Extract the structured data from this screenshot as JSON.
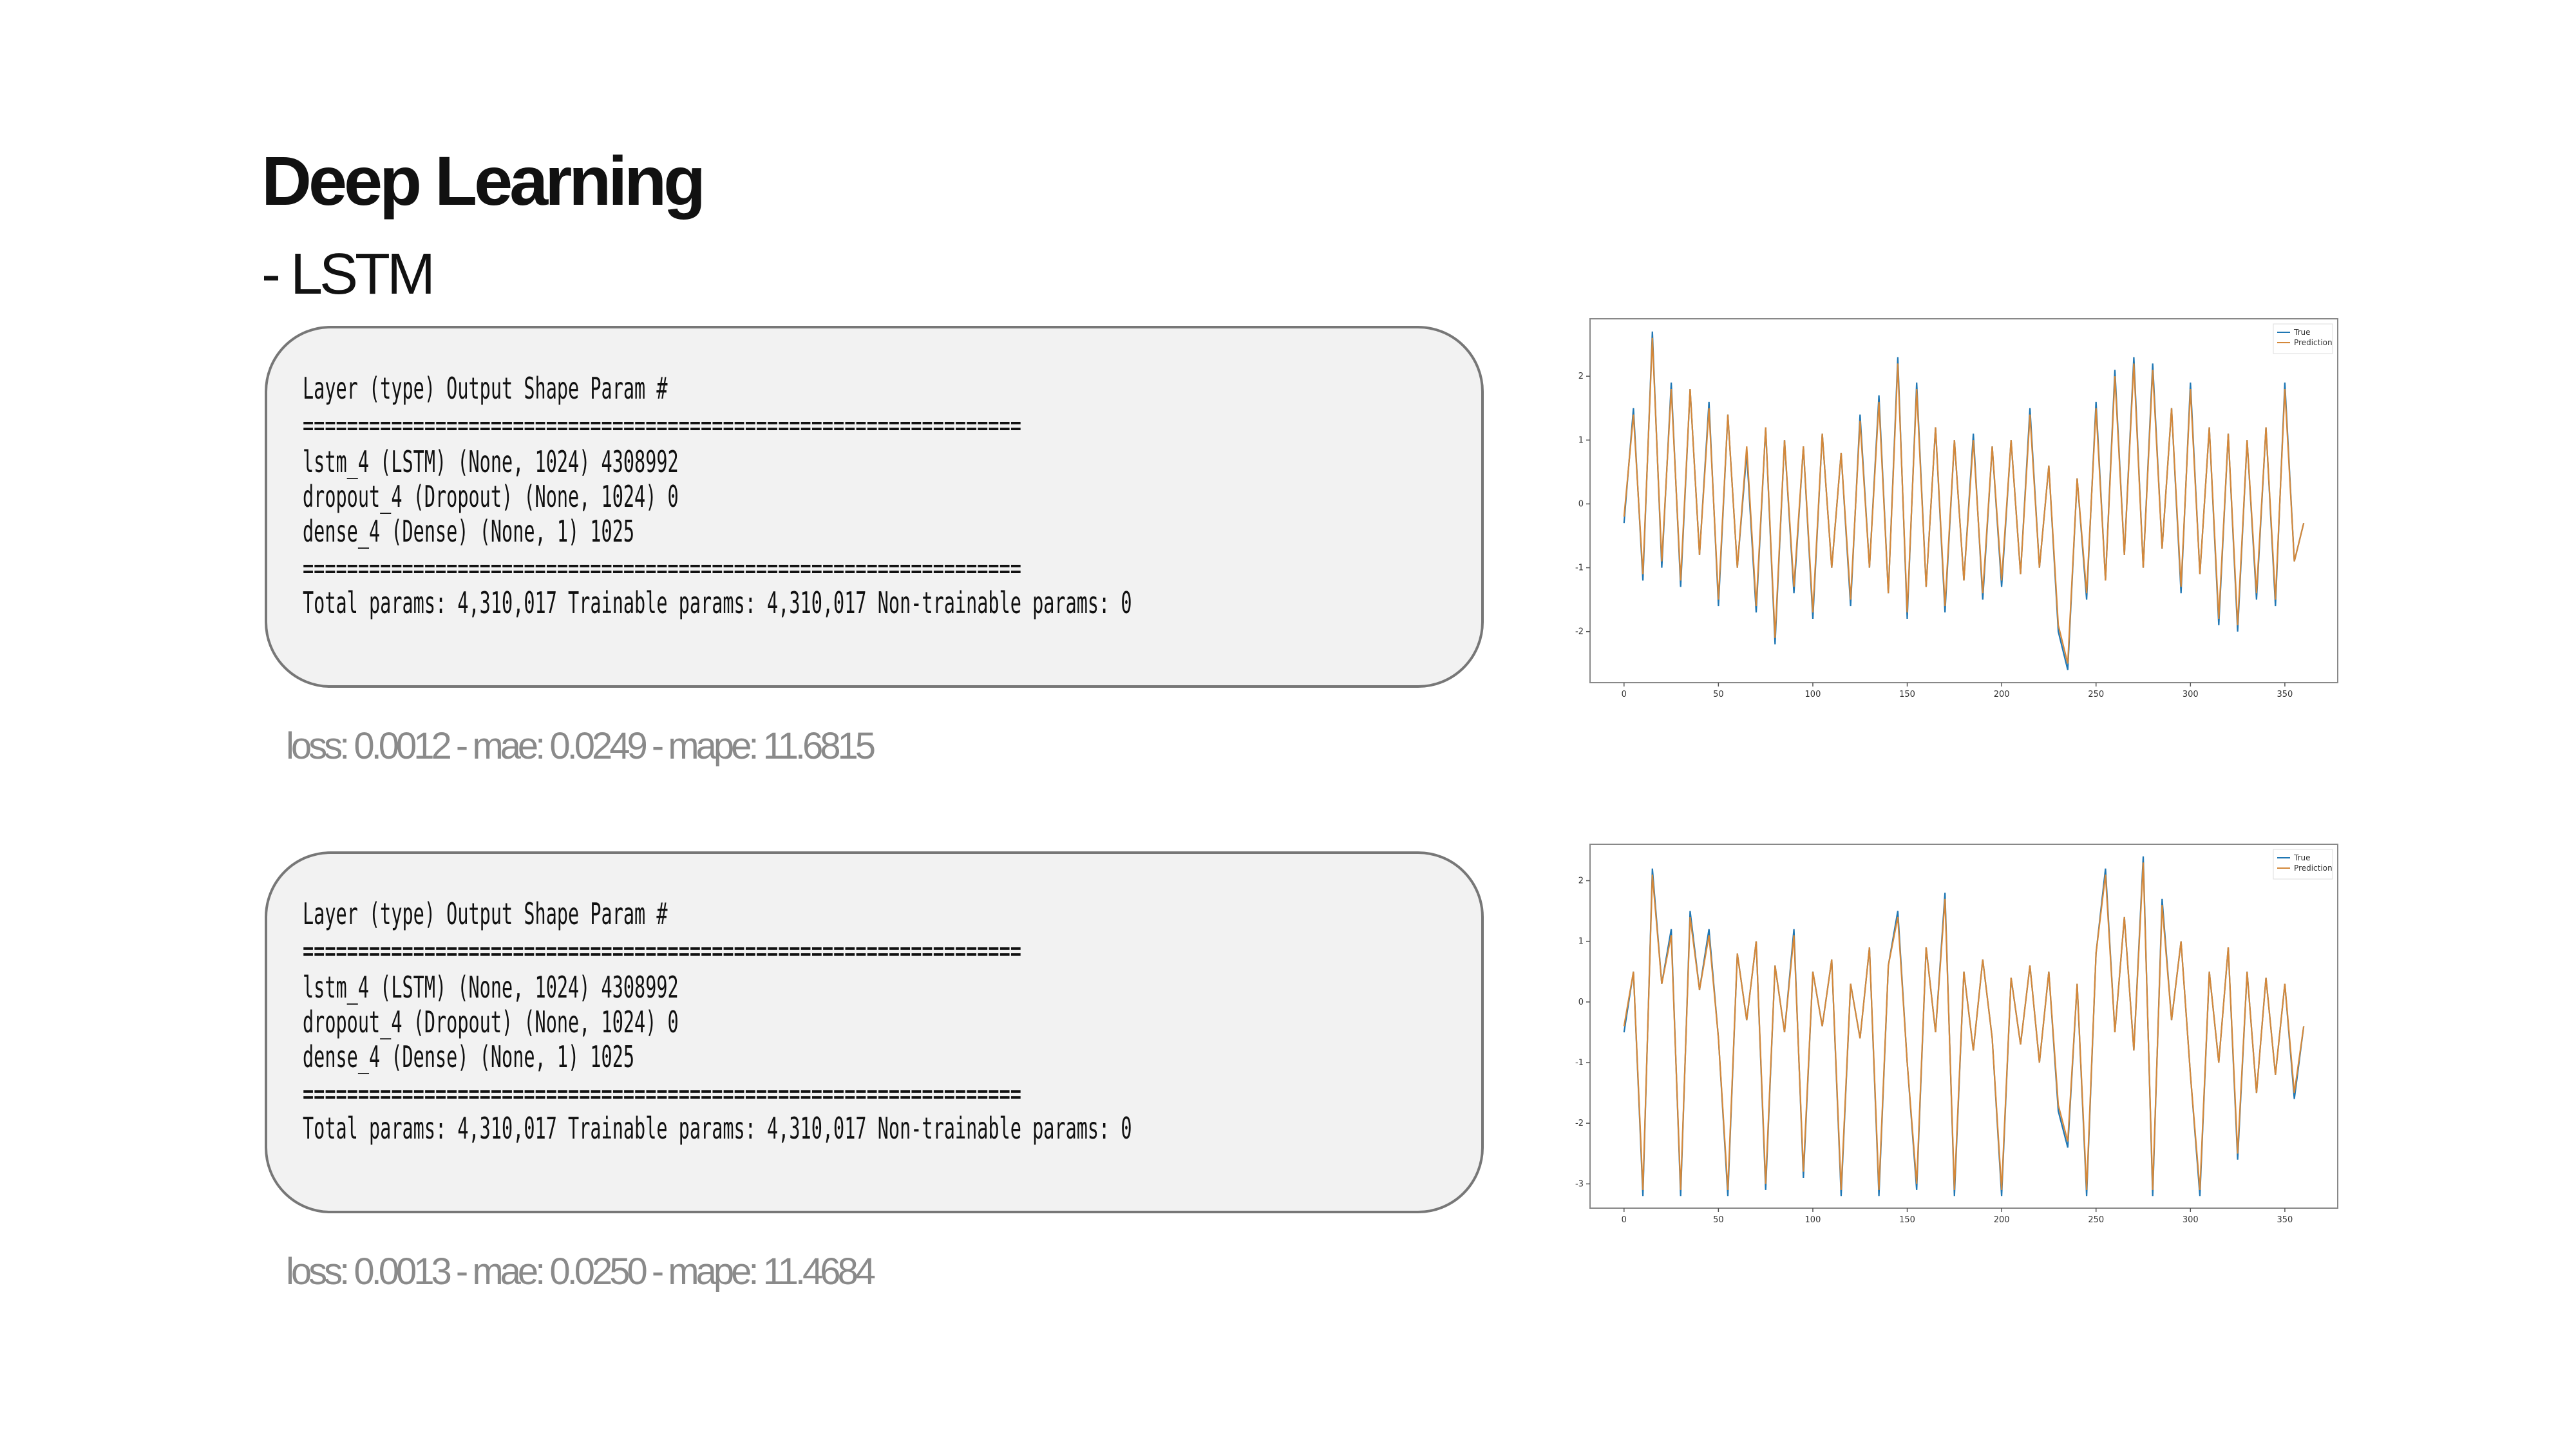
{
  "title": "Deep Learning",
  "subtitle": "- LSTM",
  "panels": [
    {
      "summary": [
        "Layer (type) Output Shape Param #",
        "=================================================================",
        "lstm_4 (LSTM) (None, 1024) 4308992",
        "dropout_4 (Dropout) (None, 1024) 0",
        "dense_4 (Dense) (None, 1) 1025",
        "=================================================================",
        "Total params: 4,310,017 Trainable params: 4,310,017 Non-trainable params: 0"
      ],
      "metrics": "loss: 0.0012 - mae: 0.0249 - mape: 11.6815"
    },
    {
      "summary": [
        "Layer (type) Output Shape Param #",
        "=================================================================",
        "lstm_4 (LSTM) (None, 1024) 4308992",
        "dropout_4 (Dropout) (None, 1024) 0",
        "dense_4 (Dense) (None, 1) 1025",
        "=================================================================",
        "Total params: 4,310,017 Trainable params: 4,310,017 Non-trainable params: 0"
      ],
      "metrics": "loss: 0.0013 - mae: 0.0250 - mape: 11.4684"
    }
  ],
  "chart_data": [
    {
      "type": "line",
      "legend": "upper right",
      "x": [
        0,
        5,
        10,
        15,
        20,
        25,
        30,
        35,
        40,
        45,
        50,
        55,
        60,
        65,
        70,
        75,
        80,
        85,
        90,
        95,
        100,
        105,
        110,
        115,
        120,
        125,
        130,
        135,
        140,
        145,
        150,
        155,
        160,
        165,
        170,
        175,
        180,
        185,
        190,
        195,
        200,
        205,
        210,
        215,
        220,
        225,
        230,
        235,
        240,
        245,
        250,
        255,
        260,
        265,
        270,
        275,
        280,
        285,
        290,
        295,
        300,
        305,
        310,
        315,
        320,
        325,
        330,
        335,
        340,
        345,
        350,
        355,
        360
      ],
      "xlim": [
        -18,
        378
      ],
      "xticks": [
        0,
        50,
        100,
        150,
        200,
        250,
        300,
        350
      ],
      "ylim": [
        -2.8,
        2.9
      ],
      "yticks": [
        -2,
        -1,
        0,
        1,
        2
      ],
      "series": [
        {
          "name": "True",
          "color": "#1f77b4",
          "values": [
            -0.3,
            1.5,
            -1.2,
            2.7,
            -1.0,
            1.9,
            -1.3,
            1.8,
            -0.8,
            1.6,
            -1.6,
            1.4,
            -1.0,
            0.8,
            -1.7,
            1.2,
            -2.2,
            1.0,
            -1.4,
            0.9,
            -1.8,
            1.1,
            -1.0,
            0.8,
            -1.6,
            1.4,
            -1.0,
            1.7,
            -1.4,
            2.3,
            -1.8,
            1.9,
            -1.3,
            1.2,
            -1.7,
            1.0,
            -1.2,
            1.1,
            -1.5,
            0.9,
            -1.3,
            1.0,
            -1.1,
            1.5,
            -1.0,
            0.6,
            -2.0,
            -2.6,
            0.4,
            -1.5,
            1.6,
            -1.2,
            2.1,
            -0.8,
            2.3,
            -1.0,
            2.2,
            -0.7,
            1.5,
            -1.4,
            1.9,
            -1.1,
            1.2,
            -1.9,
            1.1,
            -2.0,
            1.0,
            -1.5,
            1.2,
            -1.6,
            1.9,
            -0.9,
            -0.3
          ]
        },
        {
          "name": "Prediction",
          "color": "#d4883a",
          "values": [
            -0.2,
            1.4,
            -1.1,
            2.6,
            -0.9,
            1.8,
            -1.2,
            1.8,
            -0.8,
            1.5,
            -1.5,
            1.4,
            -1.0,
            0.9,
            -1.6,
            1.2,
            -2.1,
            1.0,
            -1.3,
            0.9,
            -1.7,
            1.1,
            -1.0,
            0.8,
            -1.5,
            1.3,
            -1.0,
            1.6,
            -1.4,
            2.2,
            -1.7,
            1.8,
            -1.3,
            1.2,
            -1.6,
            1.0,
            -1.2,
            1.0,
            -1.4,
            0.9,
            -1.2,
            1.0,
            -1.1,
            1.4,
            -1.0,
            0.6,
            -1.9,
            -2.5,
            0.4,
            -1.4,
            1.5,
            -1.2,
            2.0,
            -0.8,
            2.2,
            -1.0,
            2.1,
            -0.7,
            1.5,
            -1.3,
            1.8,
            -1.1,
            1.2,
            -1.8,
            1.1,
            -1.9,
            1.0,
            -1.4,
            1.2,
            -1.5,
            1.8,
            -0.9,
            -0.3
          ]
        }
      ]
    },
    {
      "type": "line",
      "legend": "upper right",
      "x": [
        0,
        5,
        10,
        15,
        20,
        25,
        30,
        35,
        40,
        45,
        50,
        55,
        60,
        65,
        70,
        75,
        80,
        85,
        90,
        95,
        100,
        105,
        110,
        115,
        120,
        125,
        130,
        135,
        140,
        145,
        150,
        155,
        160,
        165,
        170,
        175,
        180,
        185,
        190,
        195,
        200,
        205,
        210,
        215,
        220,
        225,
        230,
        235,
        240,
        245,
        250,
        255,
        260,
        265,
        270,
        275,
        280,
        285,
        290,
        295,
        300,
        305,
        310,
        315,
        320,
        325,
        330,
        335,
        340,
        345,
        350,
        355,
        360
      ],
      "xlim": [
        -18,
        378
      ],
      "xticks": [
        0,
        50,
        100,
        150,
        200,
        250,
        300,
        350
      ],
      "ylim": [
        -3.4,
        2.6
      ],
      "yticks": [
        -3,
        -2,
        -1,
        0,
        1,
        2
      ],
      "series": [
        {
          "name": "True",
          "color": "#1f77b4",
          "values": [
            -0.5,
            0.5,
            -3.2,
            2.2,
            0.3,
            1.2,
            -3.2,
            1.5,
            0.2,
            1.2,
            -0.6,
            -3.2,
            0.8,
            -0.3,
            1.0,
            -3.1,
            0.6,
            -0.5,
            1.2,
            -2.9,
            0.5,
            -0.4,
            0.7,
            -3.2,
            0.3,
            -0.6,
            0.9,
            -3.2,
            0.6,
            1.5,
            -1.0,
            -3.1,
            0.9,
            -0.5,
            1.8,
            -3.2,
            0.5,
            -0.8,
            0.7,
            -0.6,
            -3.2,
            0.4,
            -0.7,
            0.6,
            -1.0,
            0.5,
            -1.8,
            -2.4,
            0.3,
            -3.2,
            0.8,
            2.2,
            -0.5,
            1.4,
            -0.8,
            2.4,
            -3.2,
            1.7,
            -0.3,
            1.0,
            -1.2,
            -3.2,
            0.5,
            -1.0,
            0.9,
            -2.6,
            0.5,
            -1.5,
            0.4,
            -1.2,
            0.3,
            -1.6,
            -0.4
          ]
        },
        {
          "name": "Prediction",
          "color": "#d4883a",
          "values": [
            -0.4,
            0.5,
            -3.1,
            2.1,
            0.3,
            1.1,
            -3.1,
            1.4,
            0.2,
            1.1,
            -0.6,
            -3.1,
            0.8,
            -0.3,
            1.0,
            -3.0,
            0.6,
            -0.5,
            1.1,
            -2.8,
            0.5,
            -0.4,
            0.7,
            -3.1,
            0.3,
            -0.6,
            0.9,
            -3.1,
            0.6,
            1.4,
            -1.0,
            -3.0,
            0.9,
            -0.5,
            1.7,
            -3.1,
            0.5,
            -0.8,
            0.7,
            -0.6,
            -3.1,
            0.4,
            -0.7,
            0.6,
            -1.0,
            0.5,
            -1.7,
            -2.3,
            0.3,
            -3.1,
            0.8,
            2.1,
            -0.5,
            1.4,
            -0.8,
            2.3,
            -3.1,
            1.6,
            -0.3,
            1.0,
            -1.2,
            -3.1,
            0.5,
            -1.0,
            0.9,
            -2.5,
            0.5,
            -1.5,
            0.4,
            -1.2,
            0.3,
            -1.5,
            -0.4
          ]
        }
      ]
    }
  ]
}
